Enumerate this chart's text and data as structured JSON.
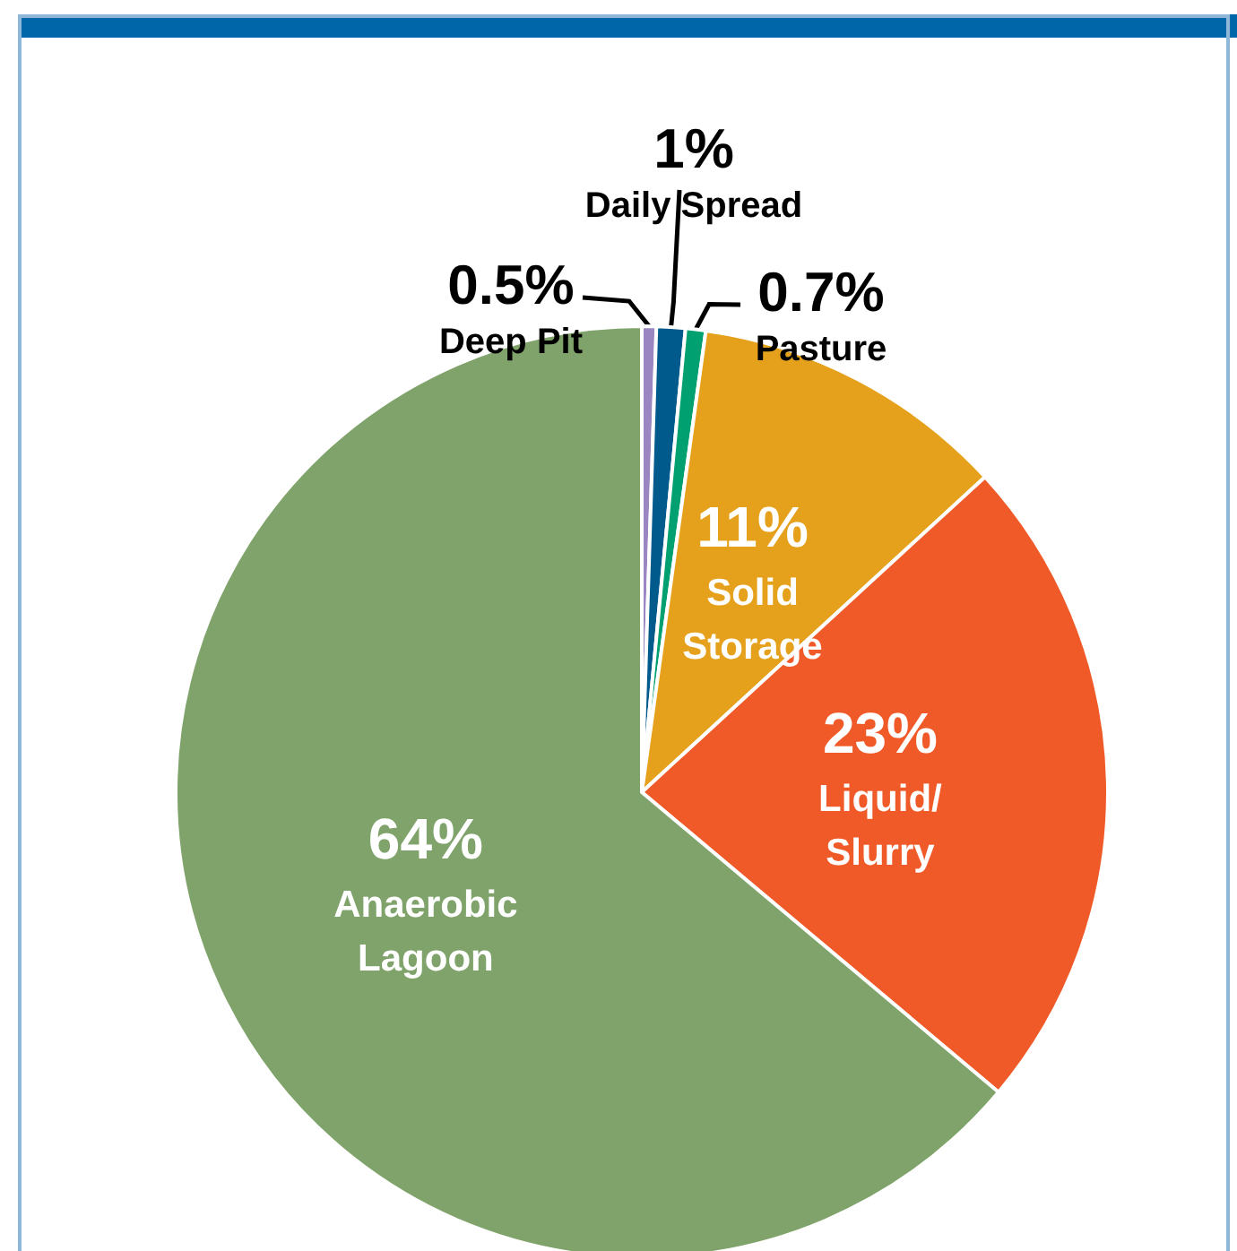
{
  "chart_data": {
    "type": "pie",
    "categories": [
      "Deep Pit",
      "Daily Spread",
      "Pasture",
      "Solid\nStorage",
      "Liquid/\nSlurry",
      "Anaerobic\nLagoon"
    ],
    "values": [
      0.5,
      1,
      0.7,
      11,
      23,
      64
    ],
    "value_labels": [
      "0.5%",
      "1%",
      "0.7%",
      "11%",
      "23%",
      "64%"
    ],
    "colors": [
      "#9a86c0",
      "#005a8c",
      "#00a070",
      "#e6a11c",
      "#f05a28",
      "#7fa36a"
    ],
    "legend": false
  }
}
